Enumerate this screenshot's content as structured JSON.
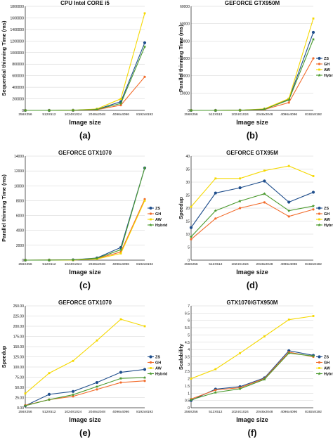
{
  "chart_data": [
    {
      "panel": "(a)",
      "type": "line",
      "title": "CPU Intel CORE i5",
      "xlabel": "Image size",
      "ylabel": "Sequential thinning Time (ms)",
      "categories": [
        "256X256",
        "512X512",
        "1024X1024",
        "2048x2048",
        "4096x4096",
        "8192x8192"
      ],
      "ylim": [
        0,
        1800000
      ],
      "yticks": [
        0,
        200000,
        400000,
        600000,
        800000,
        1000000,
        1200000,
        1400000,
        1600000,
        1800000
      ],
      "ytick_labels": [
        "0",
        "200000",
        "400000",
        "600000",
        "800000",
        "1000000",
        "1200000",
        "1400000",
        "1600000",
        "1800000"
      ],
      "legend": false,
      "series": [
        {
          "name": "ZS",
          "values": [
            0,
            0,
            2000,
            18000,
            150000,
            1170000
          ]
        },
        {
          "name": "GH",
          "values": [
            0,
            0,
            1500,
            12000,
            90000,
            580000
          ]
        },
        {
          "name": "AW",
          "values": [
            0,
            0,
            3000,
            25000,
            200000,
            1680000
          ]
        },
        {
          "name": "Hybrid",
          "values": [
            0,
            0,
            2000,
            17000,
            120000,
            1100000
          ]
        }
      ]
    },
    {
      "panel": "(b)",
      "type": "line",
      "title": "GEFORCE GTX950M",
      "xlabel": "Image size",
      "ylabel": "Parallel thinning Time (ms)",
      "categories": [
        "256X256",
        "512X512",
        "1024X1024",
        "2048x2048",
        "4096x4096",
        "8192x8192"
      ],
      "ylim": [
        0,
        60000
      ],
      "yticks": [
        0,
        10000,
        20000,
        30000,
        40000,
        50000,
        60000
      ],
      "ytick_labels": [
        "0",
        "10000",
        "20000",
        "30000",
        "40000",
        "50000",
        "60000"
      ],
      "legend": true,
      "legend_position": "right",
      "series": [
        {
          "name": "ZS",
          "values": [
            0,
            0,
            80,
            700,
            6500,
            45000
          ]
        },
        {
          "name": "GH",
          "values": [
            0,
            0,
            60,
            500,
            4500,
            30000
          ]
        },
        {
          "name": "AW",
          "values": [
            0,
            0,
            90,
            900,
            6800,
            53000
          ]
        },
        {
          "name": "Hybrid",
          "values": [
            0,
            0,
            70,
            650,
            6000,
            41000
          ]
        }
      ]
    },
    {
      "panel": "(c)",
      "type": "line",
      "title": "GEFORCE GTX1070",
      "xlabel": "Image size",
      "ylabel": "Parallel thinning Time (ms)",
      "categories": [
        "256X256",
        "512X512",
        "1024X1024",
        "2048x2048",
        "4096x4096",
        "8192x8192"
      ],
      "ylim": [
        0,
        14000
      ],
      "yticks": [
        0,
        2000,
        4000,
        6000,
        8000,
        10000,
        12000,
        14000
      ],
      "ytick_labels": [
        "0",
        "2000",
        "4000",
        "6000",
        "8000",
        "10000",
        "12000",
        "14000"
      ],
      "legend": true,
      "legend_position": "right",
      "series": [
        {
          "name": "ZS",
          "values": [
            0,
            5,
            40,
            290,
            1700,
            12400
          ]
        },
        {
          "name": "GH",
          "values": [
            0,
            4,
            30,
            220,
            1100,
            8200
          ]
        },
        {
          "name": "AW",
          "values": [
            0,
            3,
            20,
            150,
            900,
            8000
          ]
        },
        {
          "name": "Hybrid",
          "values": [
            0,
            4,
            35,
            250,
            1400,
            12400
          ]
        }
      ]
    },
    {
      "panel": "(d)",
      "type": "line",
      "title": "GEFORCE GTX95M",
      "xlabel": "Image size",
      "ylabel": "Speedup",
      "categories": [
        "256X256",
        "512X512",
        "1024X1024",
        "2048x2048",
        "4096x4096",
        "8192x8192"
      ],
      "ylim": [
        0,
        40
      ],
      "yticks": [
        0,
        5,
        10,
        15,
        20,
        25,
        30,
        35,
        40
      ],
      "ytick_labels": [
        "0",
        "5",
        "10",
        "15",
        "20",
        "25",
        "30",
        "35",
        "40"
      ],
      "legend": true,
      "legend_position": "right",
      "series": [
        {
          "name": "ZS",
          "values": [
            12.5,
            25.8,
            27.8,
            30.4,
            22.3,
            26.1
          ]
        },
        {
          "name": "GH",
          "values": [
            8.0,
            16.0,
            20.0,
            22.2,
            16.8,
            19.5
          ]
        },
        {
          "name": "AW",
          "values": [
            20.5,
            31.4,
            31.4,
            34.4,
            36.2,
            32.3
          ]
        },
        {
          "name": "Hybrid",
          "values": [
            9.0,
            19.0,
            22.7,
            25.5,
            19.0,
            20.8
          ]
        }
      ]
    },
    {
      "panel": "(e)",
      "type": "line",
      "title": "GEFORCE GTX1070",
      "xlabel": "Image size",
      "ylabel": "Speedup",
      "categories": [
        "256X256",
        "512X512",
        "1024X1024",
        "2048x2048",
        "4096x4096",
        "8192x8192"
      ],
      "ylim": [
        0,
        250
      ],
      "yticks": [
        0,
        25,
        50,
        75,
        100,
        125,
        150,
        175,
        200,
        225,
        250
      ],
      "ytick_labels": [
        "0.00",
        "25.00",
        "50.00",
        "75.00",
        "100.00",
        "125.00",
        "150.00",
        "175.00",
        "200.00",
        "225.00",
        "250.00"
      ],
      "legend": true,
      "legend_position": "right",
      "series": [
        {
          "name": "ZS",
          "values": [
            5,
            33,
            40,
            62,
            87,
            94
          ]
        },
        {
          "name": "GH",
          "values": [
            6,
            20,
            28,
            45,
            62,
            66
          ]
        },
        {
          "name": "AW",
          "values": [
            35,
            85,
            115,
            165,
            217,
            200
          ]
        },
        {
          "name": "Hybrid",
          "values": [
            5,
            20,
            32,
            52,
            72,
            74
          ]
        }
      ]
    },
    {
      "panel": "(f)",
      "type": "line",
      "title": "GTX1070/GTX950M",
      "xlabel": "Image size",
      "ylabel": "Scalability",
      "categories": [
        "256X256",
        "512X512",
        "1024X1024",
        "2048x2048",
        "4096x4096",
        "8192x8192"
      ],
      "ylim": [
        0,
        7
      ],
      "yticks": [
        0,
        0.5,
        1,
        1.5,
        2,
        2.5,
        3,
        3.5,
        4,
        4.5,
        5,
        5.5,
        6,
        6.5,
        7
      ],
      "ytick_labels": [
        "0",
        "0.5",
        "1",
        "1.5",
        "2",
        "2.5",
        "3",
        "3.5",
        "4",
        "4.5",
        "5",
        "5.5",
        "6",
        "6.5",
        "7"
      ],
      "legend": true,
      "legend_position": "right",
      "series": [
        {
          "name": "ZS",
          "values": [
            0.5,
            1.28,
            1.45,
            2.05,
            3.92,
            3.6
          ]
        },
        {
          "name": "GH",
          "values": [
            0.6,
            1.22,
            1.38,
            2.0,
            3.82,
            3.5
          ]
        },
        {
          "name": "AW",
          "values": [
            2.0,
            2.65,
            3.75,
            4.9,
            6.05,
            6.3
          ]
        },
        {
          "name": "Hybrid",
          "values": [
            0.55,
            1.05,
            1.3,
            1.95,
            3.75,
            3.55
          ]
        }
      ]
    }
  ],
  "colors": {
    "ZS": "#1f4e8c",
    "GH": "#f26b2a",
    "AW": "#f5d800",
    "Hybrid": "#4a9a2e",
    "axis": "#333333",
    "text": "#111111"
  }
}
